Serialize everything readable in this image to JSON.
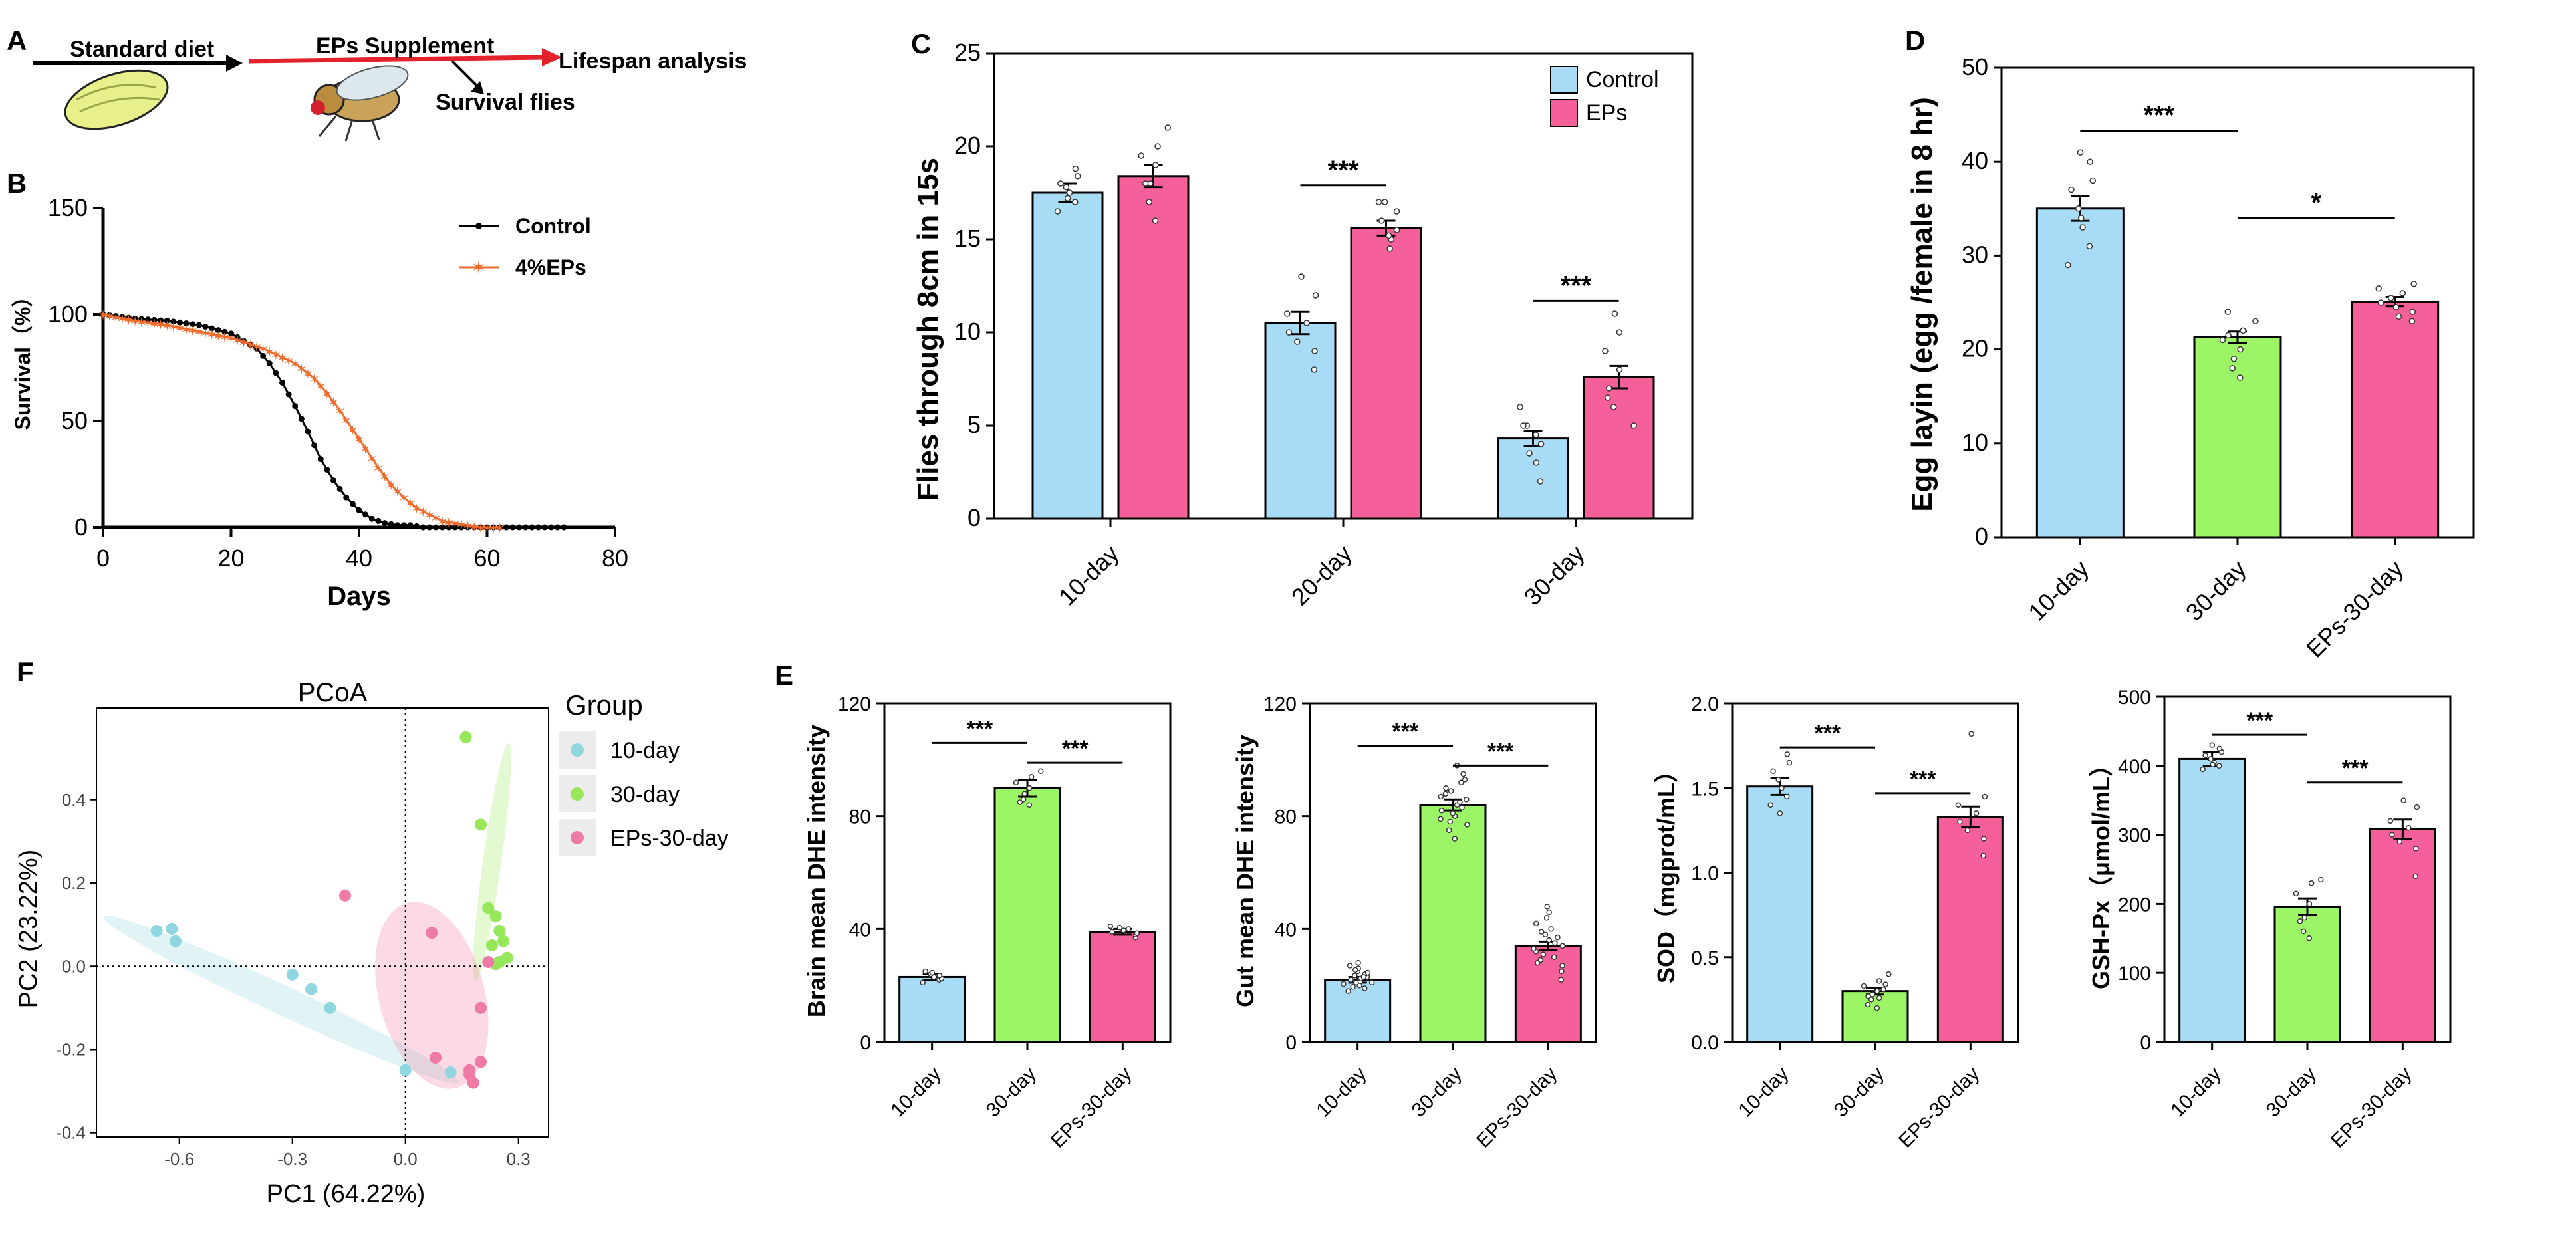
{
  "colors": {
    "control": "#a8dcf6",
    "eps": "#f6609a",
    "d30": "#9cf566",
    "survival_control": "#000000",
    "survival_eps": "#f06a2c",
    "arrow_red": "#e4222e",
    "pcoa_10": "#8fd6e0",
    "pcoa_30": "#96e85a",
    "pcoa_eps": "#f07aa6"
  },
  "panel_labels": {
    "A": "A",
    "B": "B",
    "C": "C",
    "D": "D",
    "E": "E",
    "F": "F"
  },
  "panel_a": {
    "step1": "Standard diet",
    "step2": "EPs Supplement",
    "step3": "Lifespan analysis",
    "step4": "Survival flies"
  },
  "chart_data": [
    {
      "id": "B",
      "type": "line",
      "xlabel": "Days",
      "ylabel": "Survival（%）",
      "xlim": [
        0,
        80
      ],
      "ylim": [
        0,
        150
      ],
      "xticks": [
        "0",
        "20",
        "40",
        "60",
        "80"
      ],
      "yticks": [
        "0",
        "50",
        "100",
        "150"
      ],
      "series": [
        {
          "name": "Control",
          "x": [
            0,
            5,
            10,
            15,
            20,
            24,
            26,
            28,
            30,
            32,
            34,
            36,
            38,
            40,
            42,
            44,
            46,
            48,
            50,
            54,
            58,
            62,
            66,
            70,
            72
          ],
          "y": [
            100,
            98,
            97,
            95,
            91,
            84,
            77,
            68,
            57,
            45,
            32,
            22,
            14,
            8,
            4,
            2,
            1,
            1,
            0,
            0,
            0,
            0,
            0,
            0,
            0
          ]
        },
        {
          "name": "4%EPs",
          "x": [
            0,
            5,
            10,
            15,
            20,
            25,
            30,
            33,
            35,
            37,
            39,
            41,
            43,
            45,
            47,
            49,
            51,
            53,
            55,
            57,
            59,
            62
          ],
          "y": [
            100,
            97,
            95,
            92,
            89,
            84,
            77,
            70,
            63,
            55,
            46,
            37,
            28,
            20,
            14,
            9,
            6,
            3,
            2,
            1,
            0,
            0
          ]
        }
      ]
    },
    {
      "id": "C",
      "type": "bar",
      "ylabel": "Flies through  8cm in 15s",
      "ylim": [
        0,
        25
      ],
      "yticks": [
        "0",
        "5",
        "10",
        "15",
        "20",
        "25"
      ],
      "categories": [
        "10-day",
        "20-day",
        "30-day"
      ],
      "series": [
        {
          "name": "Control",
          "values": [
            17.5,
            10.5,
            4.3
          ],
          "errors": [
            0.5,
            0.6,
            0.4
          ],
          "points": [
            [
              16.5,
              17,
              17.5,
              17.8,
              18,
              18.4,
              18.8,
              17.2
            ],
            [
              8,
              9,
              10,
              10.5,
              11,
              12,
              13,
              9.5
            ],
            [
              2,
              3,
              4,
              4.5,
              5,
              5,
              6,
              3.5
            ]
          ]
        },
        {
          "name": "EPs",
          "values": [
            18.4,
            15.6,
            7.6
          ],
          "errors": [
            0.6,
            0.4,
            0.6
          ],
          "points": [
            [
              16,
              17,
              18,
              19,
              19.5,
              20,
              21,
              18
            ],
            [
              14.5,
              15,
              15.5,
              16,
              16.5,
              17,
              17,
              15.2
            ],
            [
              5,
              6,
              7,
              8,
              9,
              10,
              11,
              6.5
            ]
          ]
        }
      ],
      "significance": [
        "***",
        "***"
      ]
    },
    {
      "id": "D",
      "type": "bar",
      "ylabel": "Egg layin (egg /female in 8 hr)",
      "ylim": [
        0,
        50
      ],
      "yticks": [
        "0",
        "10",
        "20",
        "30",
        "40",
        "50"
      ],
      "categories": [
        "10-day",
        "30-day",
        "EPs-30-day"
      ],
      "values": [
        35,
        21.3,
        25.1
      ],
      "errors": [
        1.3,
        0.6,
        0.5
      ],
      "points": [
        [
          29,
          31,
          33,
          35,
          37,
          38,
          40,
          41,
          34
        ],
        [
          17,
          18,
          19,
          20,
          21,
          22,
          23,
          24,
          21.5
        ],
        [
          23,
          24,
          25,
          26,
          26.5,
          27,
          24.5,
          25.5,
          23.5
        ]
      ],
      "significance": [
        "***",
        "*"
      ]
    },
    {
      "id": "E1",
      "type": "bar",
      "ylabel": "Brain mean DHE intensity",
      "ylim": [
        0,
        120
      ],
      "yticks": [
        "0",
        "40",
        "80",
        "120"
      ],
      "categories": [
        "10-day",
        "30-day",
        "EPs-30-day"
      ],
      "values": [
        23,
        90,
        39
      ],
      "errors": [
        1,
        3,
        1
      ],
      "points": [
        [
          21,
          22,
          23,
          24,
          25,
          22.5,
          23.5,
          24.5
        ],
        [
          84,
          86,
          88,
          90,
          92,
          94,
          96,
          85
        ],
        [
          37,
          38,
          39,
          40,
          41,
          38.5,
          39.5,
          40.5
        ]
      ],
      "significance": [
        "***",
        "***"
      ]
    },
    {
      "id": "E2",
      "type": "bar",
      "ylabel": "Gut mean DHE intensity",
      "ylim": [
        0,
        120
      ],
      "yticks": [
        "0",
        "40",
        "80",
        "120"
      ],
      "categories": [
        "10-day",
        "30-day",
        "EPs-30-day"
      ],
      "values": [
        22,
        84,
        34
      ],
      "errors": [
        1,
        2,
        1.5
      ],
      "points": [
        [
          18,
          19,
          20,
          21,
          22,
          23,
          24,
          25,
          26,
          28,
          20.5,
          21.5,
          22.5,
          23.5,
          24.5,
          19.5,
          25.5,
          27,
          21,
          23
        ],
        [
          72,
          75,
          78,
          80,
          82,
          84,
          86,
          88,
          90,
          92,
          95,
          98,
          79,
          81,
          83,
          85,
          87,
          89,
          77,
          93
        ],
        [
          22,
          25,
          28,
          30,
          32,
          34,
          36,
          38,
          40,
          44,
          48,
          33,
          35,
          31,
          29,
          37,
          27,
          39,
          42,
          46
        ]
      ],
      "significance": [
        "***",
        "***"
      ]
    },
    {
      "id": "E3",
      "type": "bar",
      "ylabel": "SOD（mgprot/mL）",
      "ylim": [
        0,
        2
      ],
      "yticks": [
        "0.0",
        "0.5",
        "1.0",
        "1.5",
        "2.0"
      ],
      "categories": [
        "10-day",
        "30-day",
        "EPs-30-day"
      ],
      "values": [
        1.51,
        0.3,
        1.33
      ],
      "errors": [
        0.05,
        0.02,
        0.06
      ],
      "points": [
        [
          1.4,
          1.45,
          1.5,
          1.55,
          1.6,
          1.65,
          1.7,
          1.35
        ],
        [
          0.2,
          0.25,
          0.28,
          0.3,
          0.33,
          0.36,
          0.4,
          0.22,
          0.27,
          0.31,
          0.34,
          0.26
        ],
        [
          1.1,
          1.2,
          1.3,
          1.35,
          1.4,
          1.45,
          1.82,
          1.25
        ]
      ],
      "significance": [
        "***",
        "***"
      ]
    },
    {
      "id": "E4",
      "type": "bar",
      "ylabel": "GSH-Px（μmol/mL）",
      "ylim": [
        0,
        500
      ],
      "yticks": [
        "0",
        "100",
        "200",
        "300",
        "400",
        "500"
      ],
      "categories": [
        "10-day",
        "30-day",
        "EPs-30-day"
      ],
      "values": [
        410,
        196,
        308
      ],
      "errors": [
        10,
        12,
        14
      ],
      "points": [
        [
          395,
          400,
          405,
          410,
          415,
          420,
          425,
          430,
          402
        ],
        [
          150,
          160,
          180,
          200,
          215,
          230,
          235,
          175
        ],
        [
          240,
          280,
          300,
          310,
          320,
          340,
          350,
          290
        ]
      ],
      "significance": [
        "***",
        "***"
      ]
    },
    {
      "id": "F",
      "type": "scatter",
      "title": "PCoA",
      "xlabel": "PC1 (64.22%)",
      "ylabel": "PC2 (23.22%)",
      "xlim": [
        -0.82,
        0.38
      ],
      "ylim": [
        -0.41,
        0.62
      ],
      "xticks": [
        "-0.6",
        "-0.3",
        "0.0",
        "0.3"
      ],
      "xtick_values": [
        -0.6,
        -0.3,
        0.0,
        0.3
      ],
      "yticks": [
        "-0.4",
        "-0.2",
        "0.0",
        "0.2",
        "0.4"
      ],
      "ytick_values": [
        -0.4,
        -0.2,
        0.0,
        0.2,
        0.4
      ],
      "legend_title": "Group",
      "series": [
        {
          "name": "10-day",
          "x": [
            -0.66,
            -0.62,
            -0.61,
            -0.3,
            -0.25,
            -0.2,
            0.0,
            0.12
          ],
          "y": [
            0.085,
            0.09,
            0.06,
            -0.02,
            -0.055,
            -0.1,
            -0.25,
            -0.255
          ]
        },
        {
          "name": "30-day",
          "x": [
            0.16,
            0.2,
            0.22,
            0.24,
            0.25,
            0.26,
            0.23,
            0.27,
            0.25,
            0.24
          ],
          "y": [
            0.55,
            0.34,
            0.14,
            0.12,
            0.085,
            0.06,
            0.05,
            0.02,
            0.01,
            0.005
          ]
        },
        {
          "name": "EPs-30-day",
          "x": [
            -0.16,
            0.07,
            0.22,
            0.2,
            0.17,
            0.17,
            0.18,
            0.08,
            0.2
          ],
          "y": [
            0.17,
            0.08,
            0.01,
            -0.1,
            -0.25,
            -0.26,
            -0.28,
            -0.22,
            -0.23
          ]
        }
      ]
    }
  ]
}
